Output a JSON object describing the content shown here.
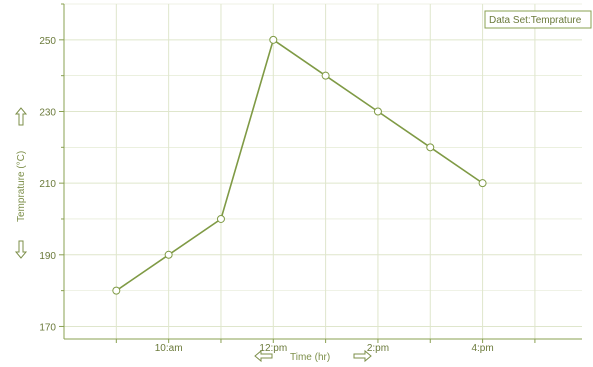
{
  "chart_data": {
    "type": "line",
    "legend": {
      "label": "Data Set:Temprature",
      "placement": "top-right"
    },
    "xlabel": "Time  (hr)",
    "ylabel": "Temprature  (°C)",
    "x_tick_labels": [
      "10:am",
      "12:pm",
      "2:pm",
      "4:pm"
    ],
    "x_tick_hours": [
      10,
      12,
      14,
      16
    ],
    "xlim_hours": [
      8,
      17.9
    ],
    "ylim": [
      166.5,
      260
    ],
    "y_ticks": [
      170,
      190,
      210,
      230,
      250
    ],
    "grid": true,
    "series": [
      {
        "name": "Data Set:Temprature",
        "x_hours": [
          9,
          10,
          11,
          12,
          13,
          14,
          15,
          16
        ],
        "values": [
          180,
          190,
          200,
          250,
          240,
          230,
          220,
          210
        ]
      }
    ]
  },
  "colors": {
    "line": "#7f9a45",
    "grid": "#dfe6cc",
    "axis": "#8aa052",
    "text": "#6b7a3b"
  },
  "icons": {
    "x_left_arrow": "left-arrow-icon",
    "x_right_arrow": "right-arrow-icon",
    "y_up_arrow": "up-arrow-icon",
    "y_down_arrow": "down-arrow-icon"
  }
}
